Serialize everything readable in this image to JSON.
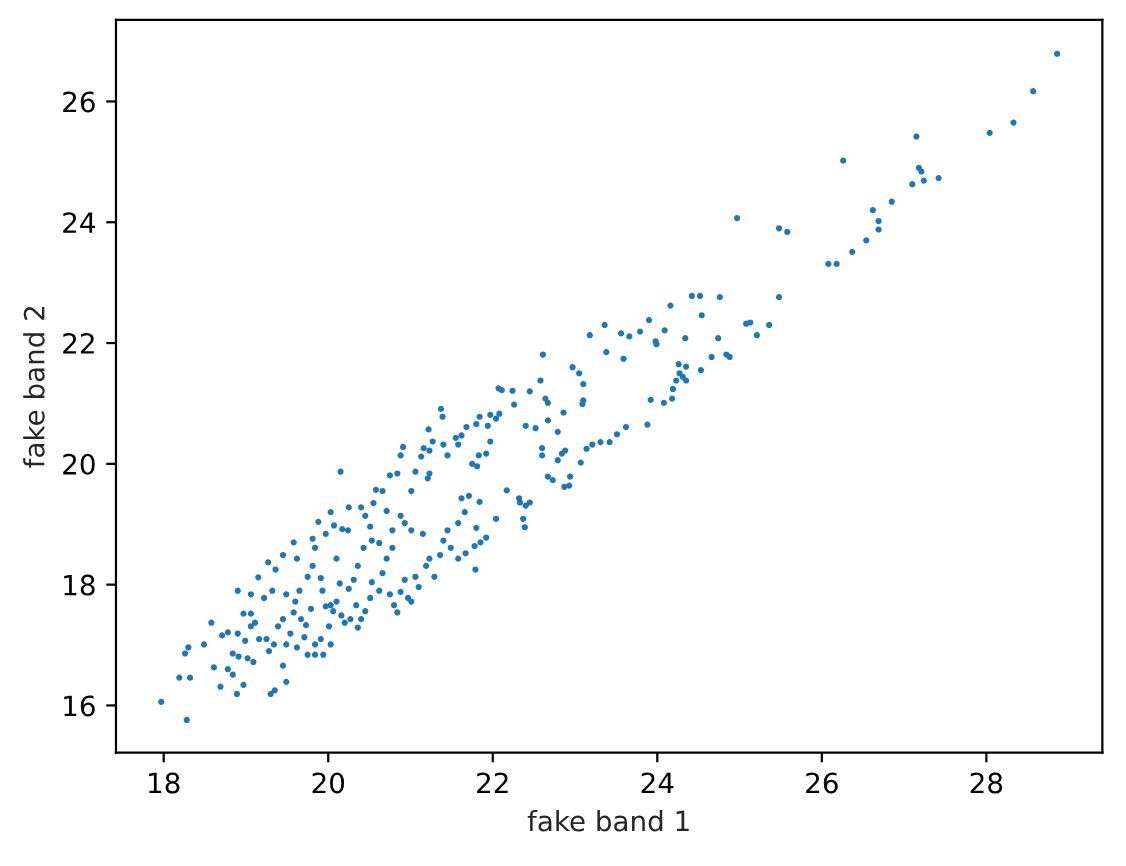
{
  "chart_data": {
    "type": "scatter",
    "xlabel": "fake band 1",
    "ylabel": "fake band 2",
    "color": "#1f77b4",
    "marker": "circle",
    "grid": false,
    "xlim": [
      17.42,
      29.41
    ],
    "ylim": [
      15.22,
      27.35
    ],
    "xticks": [
      18,
      20,
      22,
      24,
      26,
      28
    ],
    "yticks": [
      16,
      18,
      20,
      22,
      24,
      26
    ],
    "x": [
      28.86,
      28.57,
      28.33,
      28.04,
      27.15,
      26.26,
      27.18,
      27.21,
      27.24,
      27.1,
      27.42,
      26.85,
      26.62,
      26.69,
      26.69,
      26.54,
      26.37,
      26.08,
      26.18,
      24.97,
      25.48,
      25.58,
      25.48,
      25.36,
      25.13,
      25.08,
      25.21,
      24.84,
      24.88,
      24.74,
      24.76,
      24.42,
      24.52,
      24.54,
      24.34,
      24.16,
      24.09,
      23.98,
      23.99,
      23.9,
      23.79,
      23.66,
      23.56,
      23.59,
      23.36,
      23.38,
      23.18,
      23.05,
      23.1,
      23.1,
      23.09,
      22.97,
      22.61,
      22.58,
      22.45,
      22.64,
      22.67,
      22.24,
      22.26,
      22.11,
      22.07,
      22.08,
      22.04,
      21.97,
      22.4,
      22.52,
      22.67,
      22.79,
      22.86,
      22.88,
      22.84,
      22.6,
      22.6,
      22.79,
      22.67,
      22.73,
      22.94,
      22.87,
      22.93,
      23.07,
      23.14,
      23.21,
      23.31,
      23.42,
      23.51,
      23.62,
      23.88,
      23.92,
      24.08,
      24.18,
      24.19,
      24.23,
      24.26,
      24.27,
      24.35,
      24.35,
      24.53,
      24.31,
      24.66,
      22.17,
      22.32,
      22.45,
      22.4,
      22.37,
      22.39,
      22.33,
      22.04,
      21.92,
      21.8,
      21.85,
      21.78,
      21.67,
      21.79,
      21.58,
      21.66,
      21.62,
      21.84,
      21.71,
      21.83,
      21.81,
      21.75,
      21.92,
      21.97,
      21.94,
      21.84,
      21.8,
      21.68,
      21.62,
      21.55,
      21.58,
      21.45,
      21.4,
      21.39,
      21.37,
      21.27,
      21.23,
      21.22,
      21.16,
      21.13,
      21.06,
      21.21,
      21.23,
      21.01,
      20.91,
      20.88,
      20.84,
      20.75,
      20.66,
      20.58,
      20.55,
      20.71,
      20.78,
      20.51,
      20.4,
      20.45,
      20.25,
      20.17,
      20.24,
      20.15,
      20.03,
      20.07,
      19.88,
      19.97,
      19.81,
      19.84,
      19.58,
      19.62,
      19.45,
      19.27,
      19.36,
      19.15,
      19.32,
      19.22,
      19.06,
      18.9,
      19.06,
      18.97,
      19.11,
      18.78,
      18.9,
      18.71,
      18.58,
      18.49,
      18.3,
      18.26,
      18.19,
      18.32,
      17.97,
      18.28,
      18.61,
      18.69,
      18.78,
      18.84,
      18.89,
      18.97,
      18.91,
      19.02,
      19.09,
      19.16,
      19.25,
      19.3,
      19.35,
      19.28,
      19.34,
      19.39,
      19.45,
      19.49,
      19.49,
      19.54,
      19.45,
      19.58,
      19.49,
      19.6,
      19.67,
      19.73,
      19.71,
      19.62,
      19.75,
      19.84,
      19.84,
      19.91,
      19.79,
      19.81,
      19.75,
      19.65,
      19.91,
      19.93,
      19.97,
      20.03,
      20.01,
      20.03,
      19.94,
      20.06,
      20.1,
      20.16,
      20.2,
      20.27,
      20.36,
      20.4,
      20.34,
      20.45,
      20.51,
      20.53,
      20.62,
      20.66,
      20.71,
      20.78,
      20.75,
      20.8,
      20.84,
      20.88,
      20.93,
      20.97,
      21.06,
      21.01,
      21.1,
      21.19,
      21.23,
      21.29,
      21.36,
      21.4,
      21.45,
      21.49,
      21.58,
      21.15,
      20.93,
      21.01,
      20.43,
      20.36,
      20.31,
      20.25,
      20.1,
      20.14,
      20.53,
      20.62,
      20.88,
      19.06,
      18.99,
      18.84
    ],
    "values": [
      26.79,
      26.17,
      25.65,
      25.48,
      25.42,
      25.02,
      24.9,
      24.84,
      24.69,
      24.63,
      24.73,
      24.34,
      24.2,
      24.02,
      23.88,
      23.7,
      23.51,
      23.31,
      23.31,
      24.07,
      23.9,
      23.84,
      22.76,
      22.3,
      22.34,
      22.32,
      22.13,
      21.81,
      21.77,
      22.08,
      22.76,
      22.78,
      22.78,
      22.46,
      22.08,
      22.62,
      22.21,
      22.03,
      21.98,
      22.38,
      22.19,
      22.11,
      22.16,
      21.74,
      22.3,
      21.85,
      22.13,
      21.5,
      21.32,
      21.05,
      20.99,
      21.6,
      21.81,
      21.38,
      21.2,
      21.08,
      21.01,
      21.21,
      20.98,
      21.22,
      21.25,
      20.83,
      20.75,
      20.81,
      20.63,
      20.59,
      20.72,
      20.53,
      20.85,
      20.22,
      20.17,
      20.26,
      20.14,
      20.06,
      19.79,
      19.73,
      19.79,
      19.62,
      19.64,
      20.02,
      20.25,
      20.32,
      20.36,
      20.36,
      20.49,
      20.61,
      20.65,
      21.06,
      21.01,
      21.08,
      21.24,
      21.38,
      21.65,
      21.5,
      21.61,
      21.38,
      21.55,
      21.44,
      21.77,
      19.56,
      19.43,
      19.36,
      19.31,
      19.09,
      18.95,
      19.36,
      19.09,
      18.78,
      18.94,
      18.7,
      18.64,
      18.52,
      18.25,
      19.02,
      19.2,
      19.43,
      19.37,
      19.47,
      20.14,
      19.96,
      20.0,
      20.17,
      20.37,
      20.63,
      20.78,
      20.66,
      20.61,
      20.47,
      20.43,
      20.32,
      20.14,
      20.32,
      20.78,
      20.91,
      20.37,
      20.22,
      20.57,
      20.26,
      20.12,
      19.87,
      19.76,
      19.84,
      19.55,
      20.28,
      20.14,
      19.84,
      19.81,
      19.55,
      19.57,
      19.35,
      19.22,
      18.9,
      18.96,
      19.28,
      19.14,
      19.28,
      18.92,
      18.9,
      19.87,
      19.2,
      18.98,
      19.04,
      18.84,
      18.76,
      18.61,
      18.7,
      18.43,
      18.49,
      18.37,
      18.25,
      18.12,
      17.9,
      17.78,
      17.84,
      17.9,
      17.52,
      17.52,
      17.37,
      17.21,
      17.19,
      17.16,
      17.37,
      17.01,
      16.96,
      16.86,
      16.46,
      16.46,
      16.06,
      15.76,
      16.63,
      16.31,
      16.6,
      16.51,
      16.19,
      16.34,
      16.81,
      16.78,
      16.72,
      17.1,
      17.1,
      16.19,
      16.25,
      16.9,
      17.01,
      17.31,
      16.66,
      16.39,
      17.01,
      17.19,
      17.43,
      17.54,
      17.84,
      17.72,
      17.43,
      17.33,
      17.13,
      16.96,
      16.84,
      17.01,
      16.84,
      17.1,
      17.6,
      18.31,
      18.13,
      17.9,
      18.11,
      17.9,
      17.64,
      17.66,
      17.31,
      17.01,
      16.84,
      17.56,
      17.72,
      17.49,
      17.37,
      17.43,
      17.29,
      17.43,
      17.66,
      17.56,
      17.78,
      18.04,
      17.9,
      18.19,
      18.43,
      18.61,
      17.84,
      17.66,
      17.54,
      17.88,
      18.08,
      17.78,
      18.13,
      17.72,
      17.96,
      18.31,
      18.43,
      18.13,
      18.49,
      18.73,
      18.9,
      18.61,
      18.43,
      18.84,
      19.02,
      18.9,
      18.61,
      18.31,
      18.08,
      17.93,
      18.43,
      18.02,
      18.73,
      18.69,
      19.14,
      17.31,
      17.07,
      16.86
    ]
  }
}
